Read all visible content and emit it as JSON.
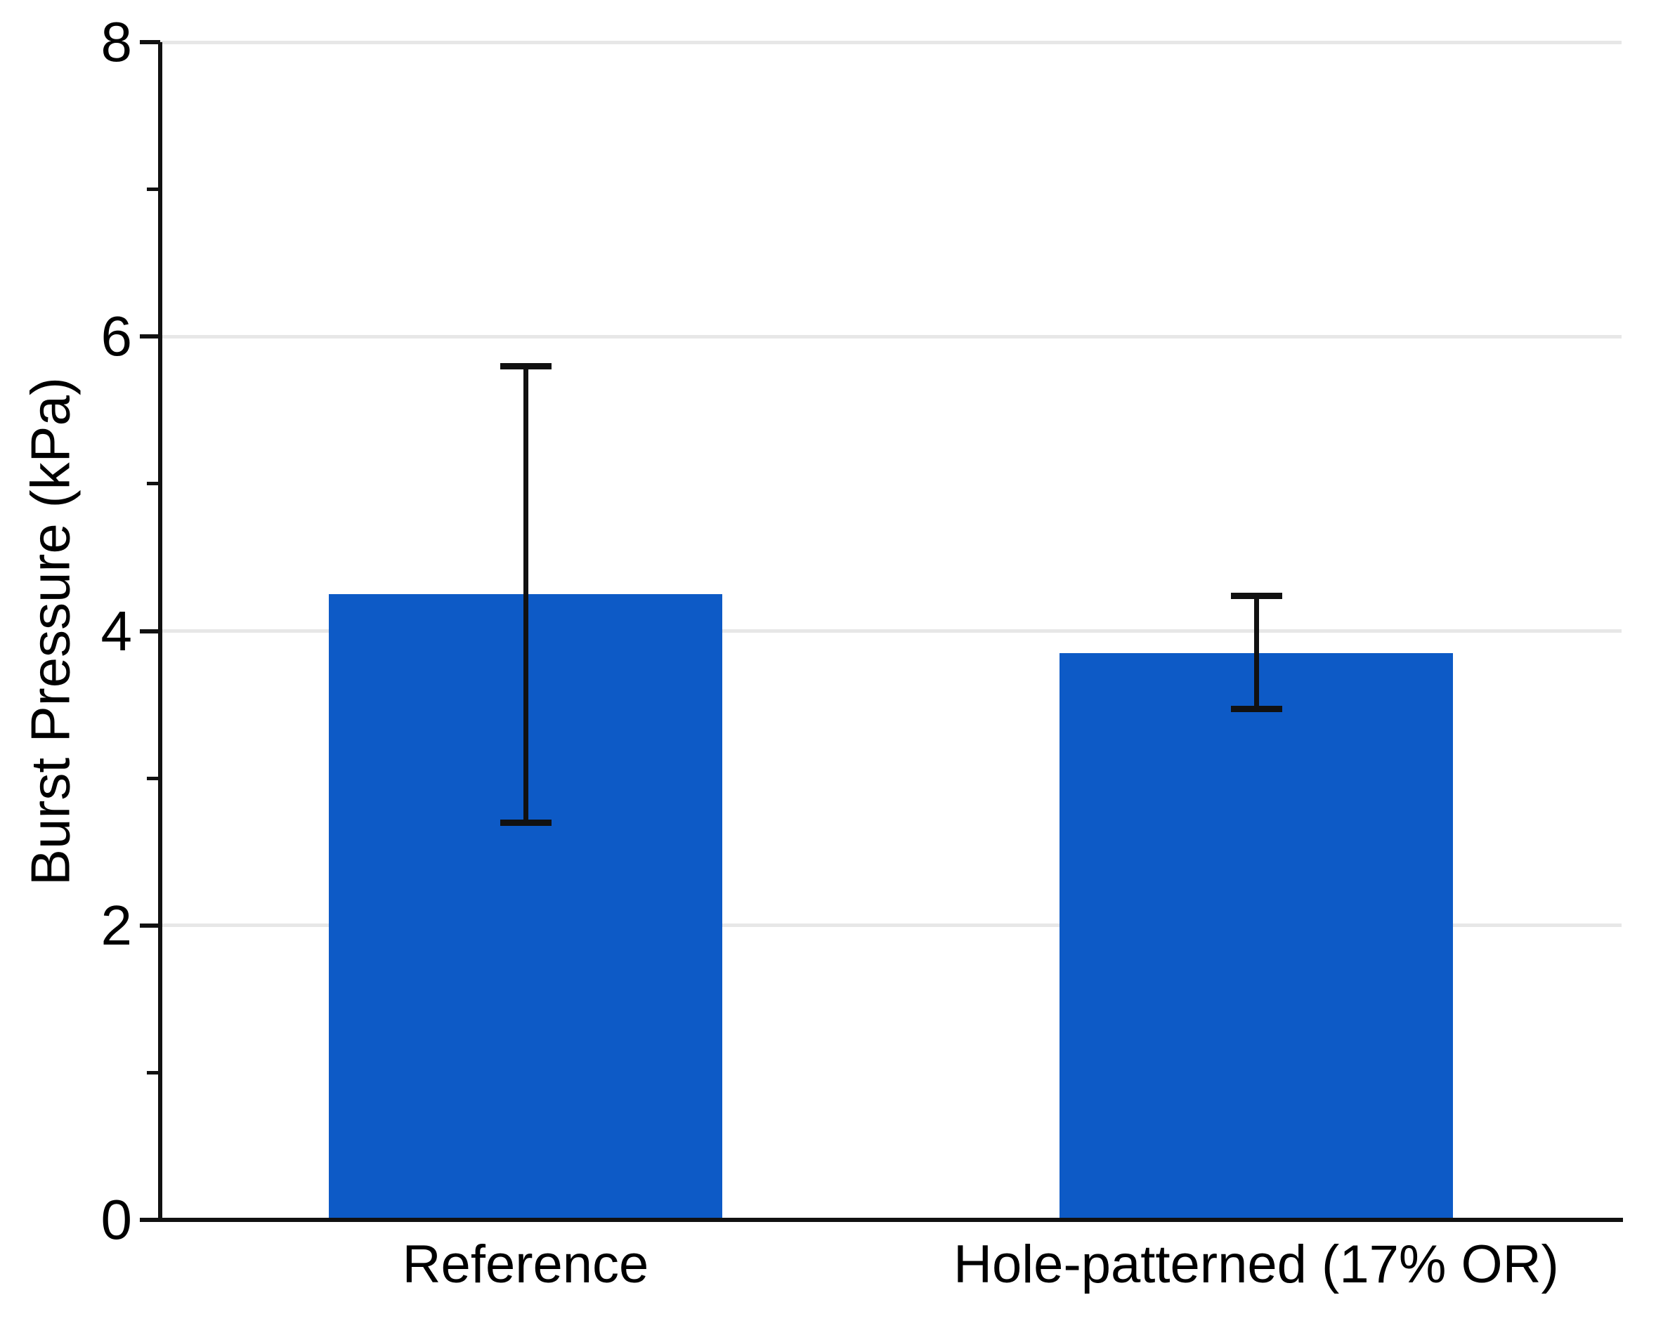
{
  "chart_data": {
    "type": "bar",
    "categories": [
      "Reference",
      "Hole-patterned (17% OR)"
    ],
    "values": [
      4.25,
      3.85
    ],
    "error_low": [
      2.7,
      3.47
    ],
    "error_high": [
      5.8,
      4.24
    ],
    "ylabel": "Burst Pressure (kPa)",
    "xlabel": "",
    "ylim": [
      0,
      8
    ],
    "yticks_major": [
      0,
      2,
      4,
      6,
      8
    ],
    "yticks_minor": [
      1,
      3,
      5,
      7
    ],
    "gridline_values": [
      2,
      4,
      6,
      8
    ],
    "grid": "horizontal-on",
    "legend": "none",
    "bar_color": "#0d5ac6",
    "grid_color": "#e7e7e7",
    "axis_color": "#111111",
    "text_color": "#000000"
  }
}
